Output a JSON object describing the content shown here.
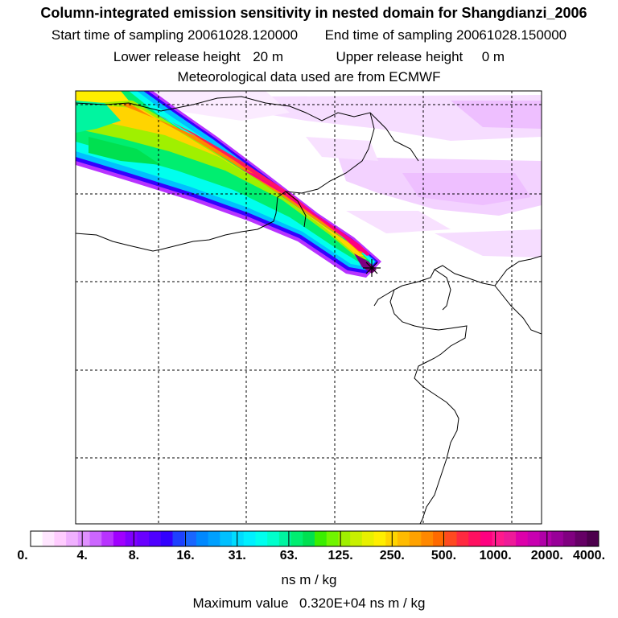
{
  "title": "Column-integrated emission sensitivity in nested domain for Shangdianzi_2006",
  "sampling": {
    "start_label": "Start time of sampling",
    "start_value": "20061028.120000",
    "end_label": "End time of sampling",
    "end_value": "20061028.150000"
  },
  "release": {
    "lower_label": "Lower release height",
    "lower_value": "20 m",
    "upper_label": "Upper release height",
    "upper_value": "0 m"
  },
  "meteo": "Meteorological data used are from ECMWF",
  "legend": {
    "tick_labels": [
      "0.",
      "4.",
      "8.",
      "16.",
      "31.",
      "63.",
      "125.",
      "250.",
      "500.",
      "1000.",
      "2000.",
      "4000."
    ],
    "colors": [
      "#ffffff",
      "#ffe6ff",
      "#ffccff",
      "#f0b0ff",
      "#e090ff",
      "#cc66ff",
      "#b833ff",
      "#a000ff",
      "#8000ff",
      "#6a00ff",
      "#4f00ff",
      "#3300ff",
      "#1e40ff",
      "#1a66ff",
      "#0088ff",
      "#00a0ff",
      "#00c0ff",
      "#00dcff",
      "#00f0ff",
      "#00ffee",
      "#00ffcc",
      "#00f5a0",
      "#00ee70",
      "#00e050",
      "#3aee00",
      "#70f500",
      "#a0f000",
      "#c8f000",
      "#e8f000",
      "#ffee00",
      "#ffd400",
      "#ffbb00",
      "#ffa200",
      "#ff8800",
      "#ff6a00",
      "#ff4a20",
      "#ff2a40",
      "#ff1060",
      "#ff0080",
      "#ff1a8c",
      "#ee1a99",
      "#dd00aa",
      "#c800b0",
      "#b000a8",
      "#980098",
      "#800080",
      "#660066",
      "#4d004d"
    ],
    "units": "ns m / kg",
    "max_label": "Maximum value",
    "max_value": "0.320E+04 ns m / kg"
  },
  "map": {
    "receptor_symbol": "+"
  }
}
